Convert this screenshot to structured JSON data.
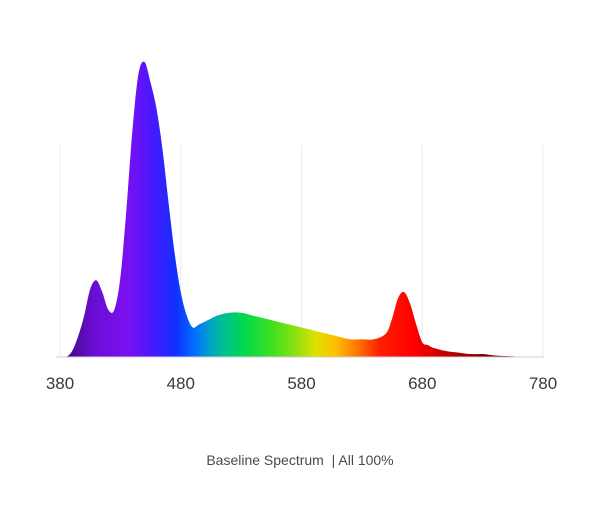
{
  "chart_data": {
    "type": "area",
    "title": "",
    "xlabel": "",
    "ylabel": "",
    "xlim": [
      380,
      780
    ],
    "ylim": [
      0,
      1.0
    ],
    "xticks": [
      "380",
      "480",
      "580",
      "680",
      "780"
    ],
    "grid": "vertical",
    "fill": "wavelength-spectrum-gradient",
    "series": [
      {
        "x": [
          380,
          385,
          390,
          395,
          400,
          405,
          410,
          415,
          420,
          425,
          430,
          435,
          440,
          445,
          450,
          455,
          460,
          465,
          470,
          475,
          480,
          485,
          490,
          495,
          500,
          505,
          510,
          520,
          530,
          540,
          550,
          560,
          570,
          580,
          590,
          600,
          610,
          620,
          630,
          640,
          650,
          655,
          660,
          665,
          670,
          675,
          680,
          685,
          690,
          700,
          710,
          720,
          730,
          740,
          750,
          760,
          770,
          780
        ],
        "y": [
          0.0,
          0.0,
          0.02,
          0.07,
          0.14,
          0.23,
          0.26,
          0.22,
          0.16,
          0.16,
          0.27,
          0.5,
          0.77,
          0.96,
          1.0,
          0.93,
          0.84,
          0.7,
          0.52,
          0.35,
          0.22,
          0.14,
          0.1,
          0.11,
          0.12,
          0.13,
          0.14,
          0.15,
          0.15,
          0.14,
          0.13,
          0.12,
          0.11,
          0.1,
          0.09,
          0.08,
          0.07,
          0.06,
          0.06,
          0.06,
          0.08,
          0.13,
          0.2,
          0.22,
          0.18,
          0.11,
          0.05,
          0.04,
          0.03,
          0.02,
          0.015,
          0.01,
          0.01,
          0.005,
          0.003,
          0.001,
          0.0,
          0.0
        ]
      }
    ],
    "caption": "Baseline Spectrum  | All 100%"
  }
}
